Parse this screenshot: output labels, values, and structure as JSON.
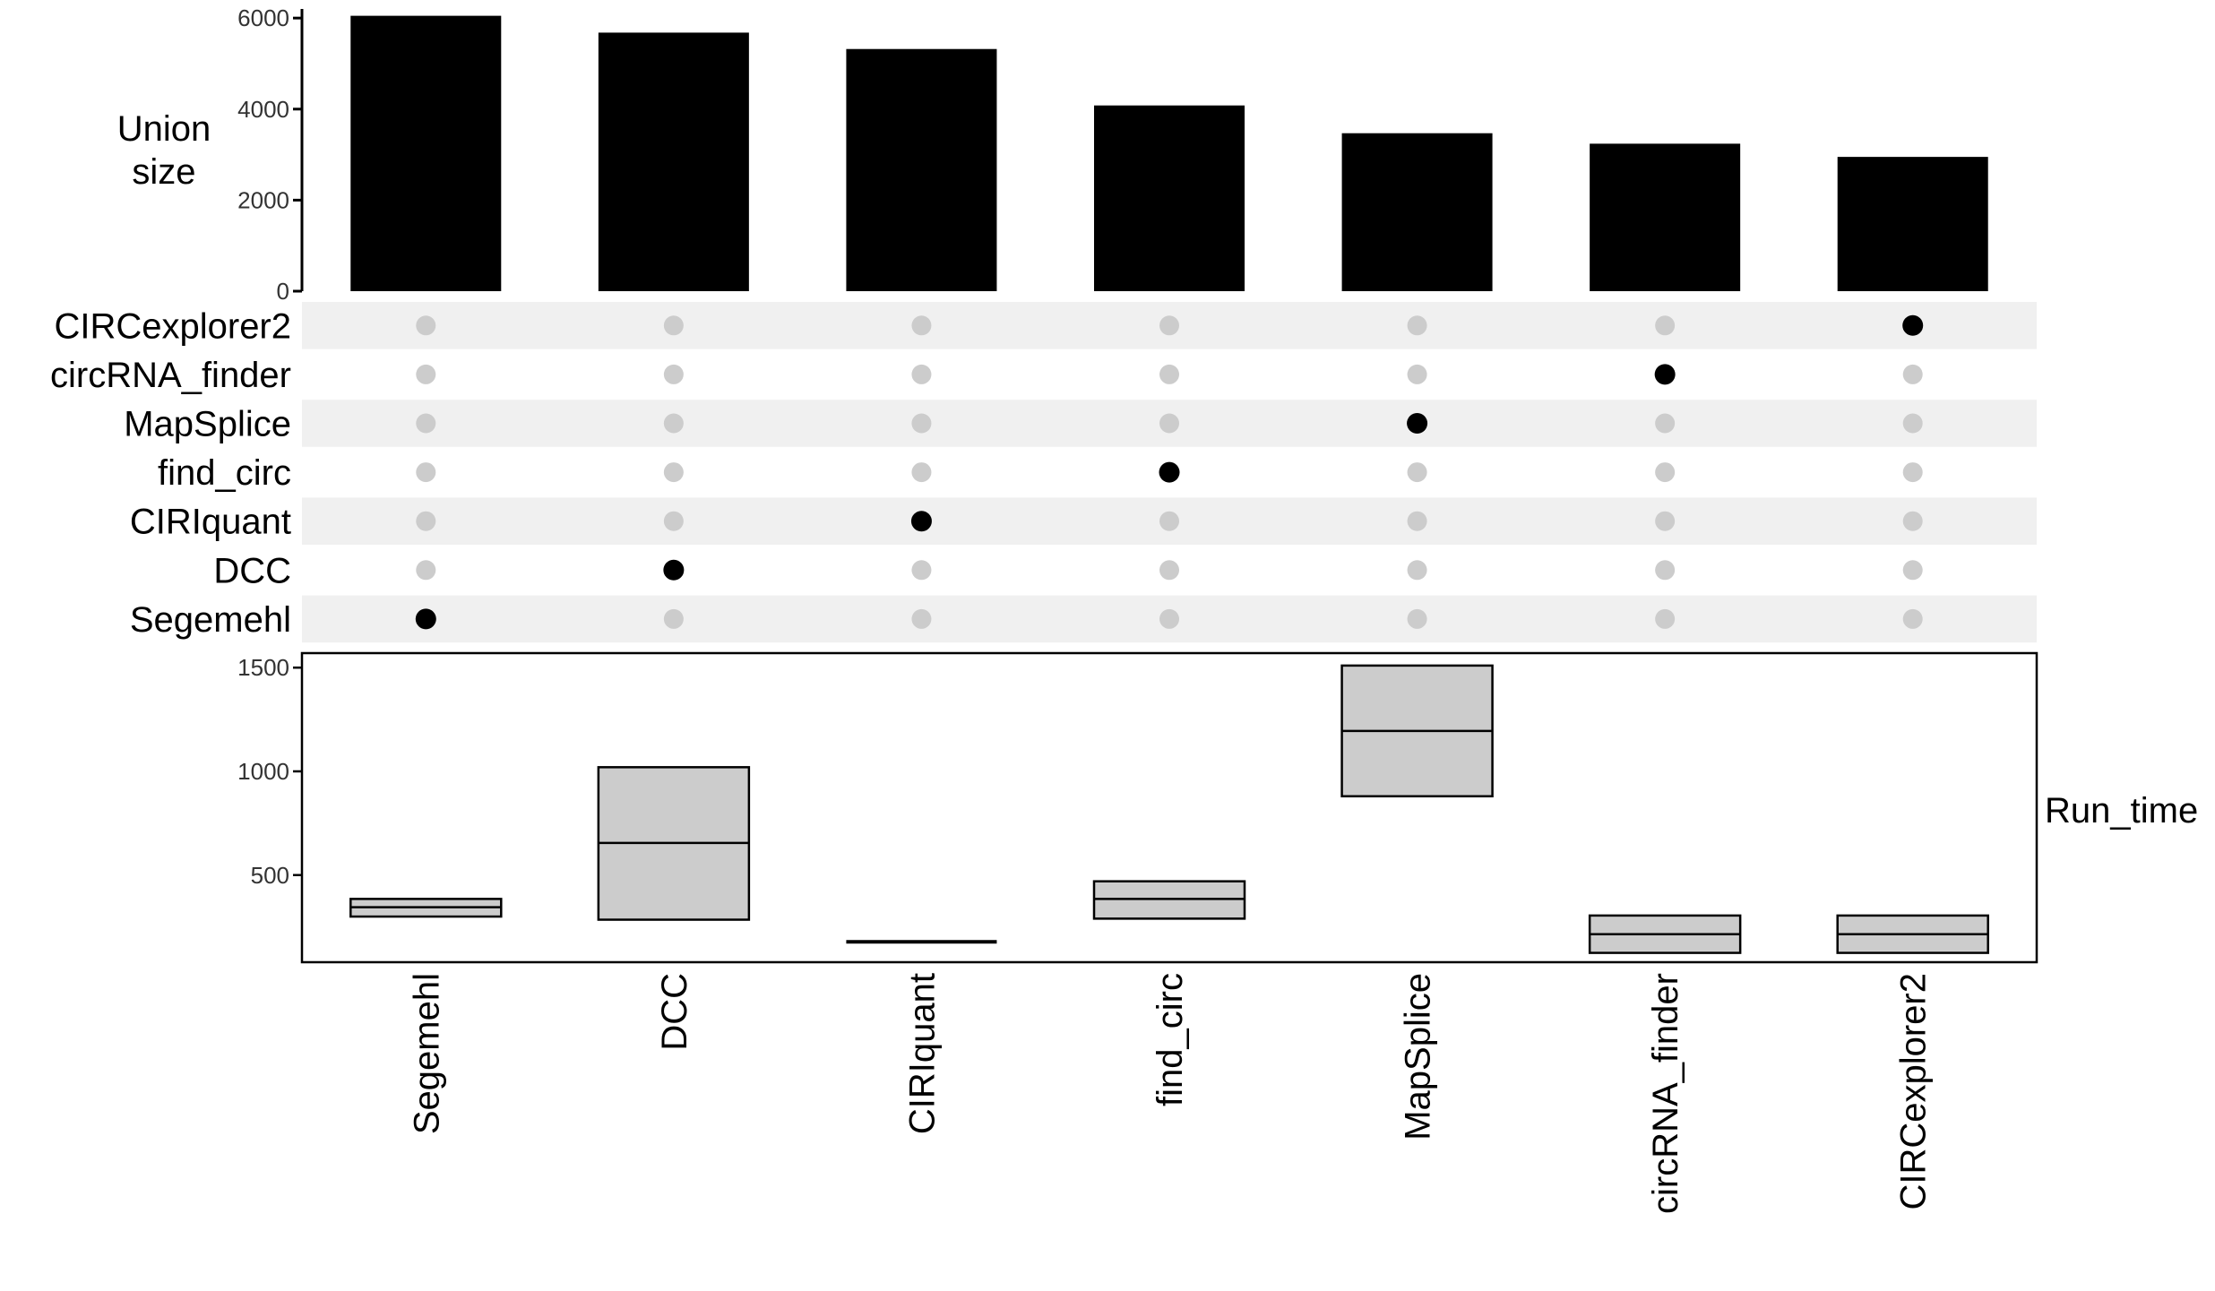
{
  "chart_data": [
    {
      "type": "bar",
      "ylabel_lines": [
        "Union",
        "size"
      ],
      "yticks": [
        0,
        2000,
        4000,
        6000
      ],
      "ylim": [
        0,
        6200
      ],
      "categories": [
        "Segemehl",
        "DCC",
        "CIRIquant",
        "find_circ",
        "MapSplice",
        "circRNA_finder",
        "CIRCexplorer2"
      ],
      "values": [
        6050,
        5680,
        5320,
        4080,
        3470,
        3240,
        2950
      ]
    },
    {
      "type": "table",
      "set_labels": [
        "CIRCexplorer2",
        "circRNA_finder",
        "MapSplice",
        "find_circ",
        "CIRIquant",
        "DCC",
        "Segemehl"
      ],
      "columns": [
        "Segemehl",
        "DCC",
        "CIRIquant",
        "find_circ",
        "MapSplice",
        "circRNA_finder",
        "CIRCexplorer2"
      ],
      "active_color": "#000000",
      "inactive_color": "#cccccc",
      "stripe_color": "#f0f0f0"
    },
    {
      "type": "boxplot",
      "ylabel": "Run_time",
      "yticks": [
        500,
        1000,
        1500
      ],
      "ylim": [
        80,
        1570
      ],
      "categories": [
        "Segemehl",
        "DCC",
        "CIRIquant",
        "find_circ",
        "MapSplice",
        "circRNA_finder",
        "CIRCexplorer2"
      ],
      "boxes": [
        {
          "q1": 300,
          "median": 345,
          "q3": 385
        },
        {
          "q1": 285,
          "median": 655,
          "q3": 1020
        },
        {
          "q1": 178,
          "median": 178,
          "q3": 178
        },
        {
          "q1": 290,
          "median": 385,
          "q3": 470
        },
        {
          "q1": 880,
          "median": 1195,
          "q3": 1510
        },
        {
          "q1": 125,
          "median": 215,
          "q3": 305
        },
        {
          "q1": 125,
          "median": 215,
          "q3": 305
        }
      ],
      "box_fill": "#cccccc"
    }
  ]
}
